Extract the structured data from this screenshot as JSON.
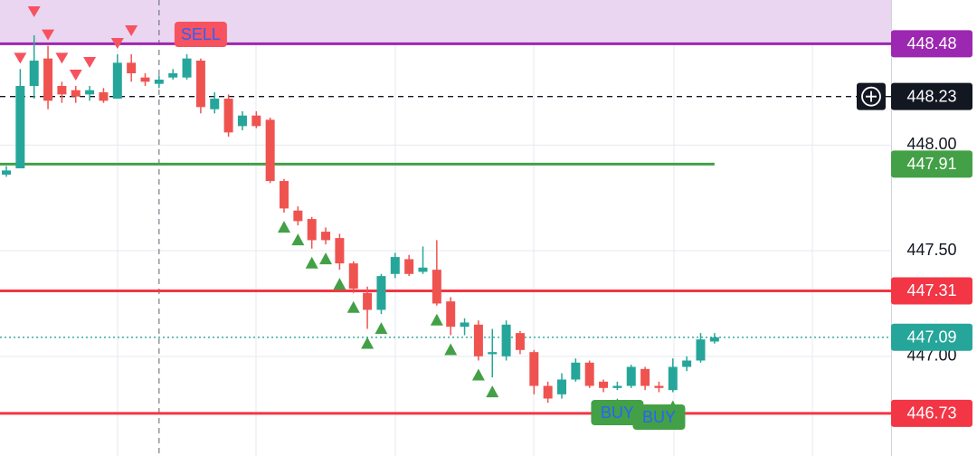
{
  "chart_data": {
    "type": "candlestick",
    "ylim": [
      446.528,
      448.687
    ],
    "yticks": [
      {
        "value": 448,
        "label": "448.00"
      },
      {
        "value": 447.5,
        "label": "447.50"
      },
      {
        "value": 447,
        "label": "447.00"
      }
    ],
    "up_color": "#26a69a",
    "down_color": "#ef5350",
    "candles": {
      "open": [
        447.86,
        447.89,
        448.28,
        448.41,
        448.28,
        448.26,
        448.24,
        448.25,
        448.22,
        448.39,
        448.32,
        448.29,
        448.32,
        448.32,
        448.4,
        448.17,
        448.22,
        448.09,
        448.14,
        448.12,
        447.83,
        447.69,
        447.65,
        447.59,
        447.56,
        447.44,
        447.3,
        447.22,
        447.39,
        447.46,
        447.4,
        447.41,
        447.26,
        447.14,
        447.15,
        447.01,
        447.0,
        447.11,
        447.02,
        446.86,
        446.82,
        446.89,
        446.97,
        446.88,
        446.85,
        446.86,
        446.94,
        446.86,
        446.84,
        446.95,
        446.98,
        447.07
      ],
      "high": [
        447.9,
        448.36,
        448.52,
        448.47,
        448.3,
        448.28,
        448.28,
        448.27,
        448.43,
        448.43,
        448.34,
        448.33,
        448.36,
        448.43,
        448.41,
        448.25,
        448.24,
        448.16,
        448.16,
        448.13,
        447.84,
        447.71,
        447.66,
        447.61,
        447.58,
        447.45,
        447.33,
        447.39,
        447.49,
        447.48,
        447.52,
        447.55,
        447.28,
        447.18,
        447.17,
        447.13,
        447.17,
        447.12,
        447.03,
        446.88,
        446.92,
        446.99,
        446.98,
        446.89,
        446.88,
        446.96,
        446.95,
        446.88,
        446.99,
        447.0,
        447.11,
        447.11
      ],
      "low": [
        447.85,
        447.89,
        448.22,
        448.17,
        448.2,
        448.2,
        448.21,
        448.2,
        448.22,
        448.3,
        448.28,
        448.27,
        448.31,
        448.31,
        448.15,
        448.15,
        448.04,
        448.07,
        448.08,
        447.82,
        447.68,
        447.62,
        447.51,
        447.53,
        447.41,
        447.3,
        447.13,
        447.2,
        447.37,
        447.38,
        447.39,
        447.24,
        447.1,
        447.1,
        446.98,
        446.9,
        446.98,
        447.01,
        446.82,
        446.78,
        446.8,
        446.88,
        446.85,
        446.83,
        446.84,
        446.85,
        446.84,
        446.83,
        446.83,
        446.93,
        446.97,
        447.06
      ],
      "close": [
        447.88,
        448.28,
        448.4,
        448.21,
        448.24,
        448.23,
        448.26,
        448.21,
        448.39,
        448.34,
        448.3,
        448.31,
        448.34,
        448.41,
        448.18,
        448.22,
        448.06,
        448.14,
        448.09,
        447.83,
        447.7,
        447.64,
        447.55,
        447.55,
        447.44,
        447.32,
        447.22,
        447.38,
        447.47,
        447.39,
        447.42,
        447.25,
        447.14,
        447.16,
        447.0,
        447.02,
        447.15,
        447.03,
        446.86,
        446.8,
        446.89,
        446.97,
        446.86,
        446.85,
        446.86,
        446.95,
        446.86,
        446.85,
        446.95,
        446.98,
        447.08,
        447.09
      ]
    },
    "signals": {
      "sell": [
        1,
        2,
        3,
        4,
        5,
        6,
        8,
        9
      ],
      "buy": [
        20,
        21,
        22,
        23,
        24,
        25,
        26,
        27,
        31,
        32,
        34,
        35,
        44,
        48
      ]
    },
    "annotations": [
      {
        "text": "SELL",
        "index": 14,
        "color": "#f7525f"
      },
      {
        "text": "BUY",
        "index": 44,
        "color": "#43a047"
      },
      {
        "text": "BUY",
        "index": 47,
        "color": "#43a047"
      }
    ],
    "crosshair_index": 11,
    "price_lines": [
      {
        "value": 448.48,
        "color": "#9c27b0",
        "style": "solid",
        "zone_color": "#ead6f0"
      },
      {
        "value": 448.23,
        "color": "#131722",
        "style": "dashed"
      },
      {
        "value": 447.91,
        "color": "#43a047",
        "style": "solid",
        "end_index": 51
      },
      {
        "value": 447.31,
        "color": "#f23645",
        "style": "solid"
      },
      {
        "value": 447.09,
        "color": "#26a69a",
        "style": "dotted"
      },
      {
        "value": 446.73,
        "color": "#f23645",
        "style": "solid"
      }
    ]
  }
}
